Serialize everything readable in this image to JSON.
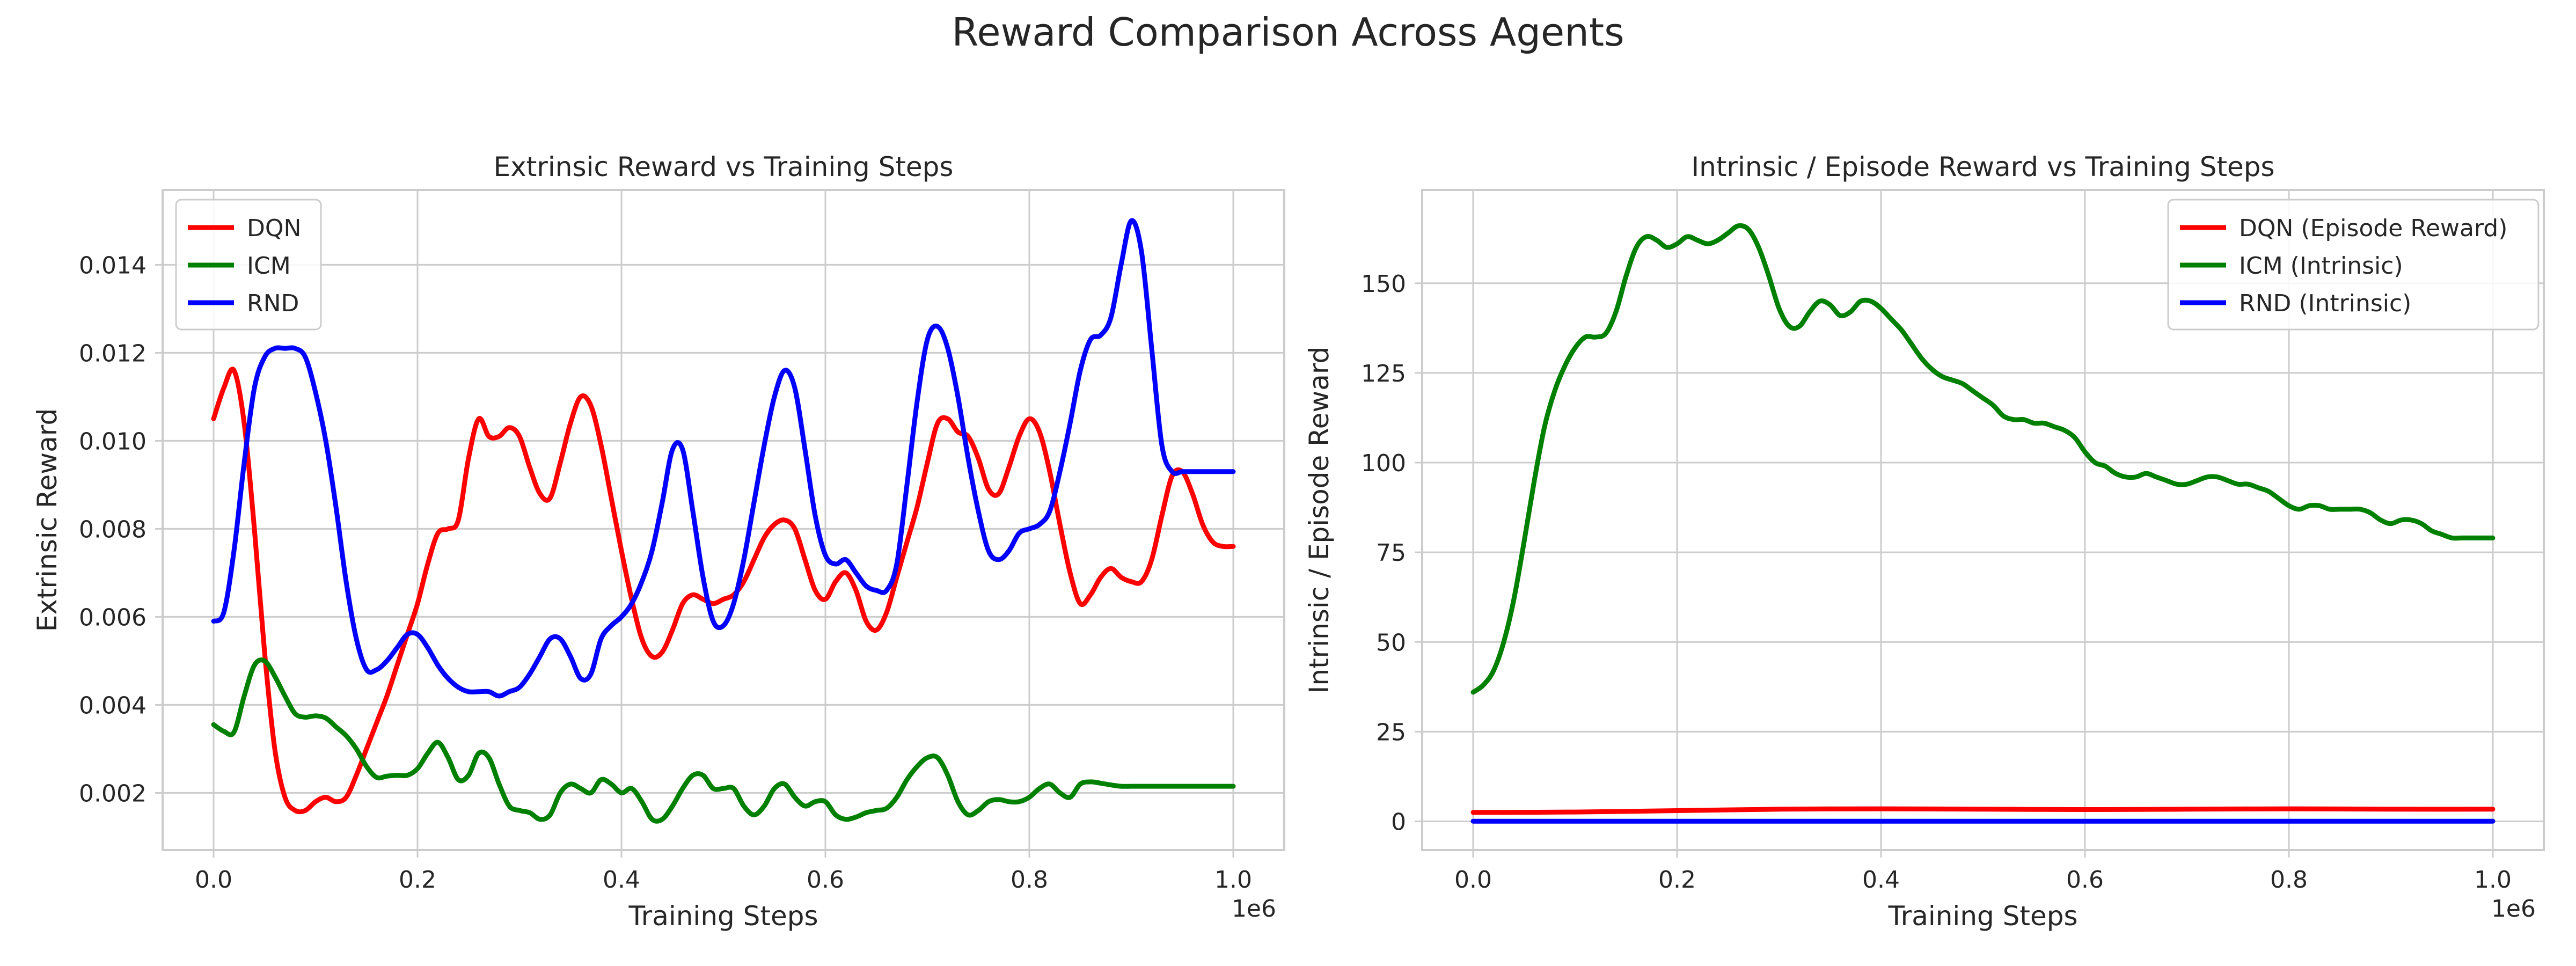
{
  "figure": {
    "suptitle": "Reward Comparison Across Agents"
  },
  "chart_data": [
    {
      "type": "line",
      "title": "Extrinsic Reward vs Training Steps",
      "xlabel": "Training Steps",
      "ylabel": "Extrinsic Reward",
      "x_offset_text": "1e6",
      "xlim": [
        -50000,
        1050000
      ],
      "ylim": [
        0.0007,
        0.0157
      ],
      "xticks": [
        0,
        200000,
        400000,
        600000,
        800000,
        1000000
      ],
      "xtick_labels": [
        "0.0",
        "0.2",
        "0.4",
        "0.6",
        "0.8",
        "1.0"
      ],
      "yticks": [
        0.002,
        0.004,
        0.006,
        0.008,
        0.01,
        0.012,
        0.014
      ],
      "ytick_labels": [
        "0.002",
        "0.004",
        "0.006",
        "0.008",
        "0.010",
        "0.012",
        "0.014"
      ],
      "grid": true,
      "legend_position": "upper-left",
      "series": [
        {
          "name": "DQN",
          "color": "#ff0000",
          "x": [
            0,
            10000,
            20000,
            30000,
            40000,
            50000,
            60000,
            70000,
            80000,
            90000,
            100000,
            110000,
            120000,
            130000,
            140000,
            150000,
            160000,
            170000,
            180000,
            190000,
            200000,
            210000,
            220000,
            230000,
            240000,
            250000,
            260000,
            270000,
            280000,
            290000,
            300000,
            310000,
            320000,
            330000,
            340000,
            350000,
            360000,
            370000,
            380000,
            390000,
            400000,
            410000,
            420000,
            430000,
            440000,
            450000,
            460000,
            470000,
            480000,
            490000,
            500000,
            510000,
            520000,
            530000,
            540000,
            550000,
            560000,
            570000,
            580000,
            590000,
            600000,
            610000,
            620000,
            630000,
            640000,
            650000,
            660000,
            670000,
            680000,
            690000,
            700000,
            710000,
            720000,
            730000,
            740000,
            750000,
            760000,
            770000,
            780000,
            790000,
            800000,
            810000,
            820000,
            830000,
            840000,
            850000,
            860000,
            870000,
            880000,
            890000,
            900000,
            910000,
            920000,
            930000,
            940000,
            950000,
            960000,
            970000,
            980000,
            990000,
            1000000
          ],
          "y": [
            0.0105,
            0.0112,
            0.0116,
            0.0104,
            0.008,
            0.0052,
            0.003,
            0.0019,
            0.0016,
            0.0016,
            0.0018,
            0.0019,
            0.0018,
            0.0019,
            0.0024,
            0.003,
            0.0036,
            0.0042,
            0.0049,
            0.0056,
            0.0063,
            0.0072,
            0.0079,
            0.008,
            0.0082,
            0.0096,
            0.0105,
            0.0101,
            0.0101,
            0.0103,
            0.0101,
            0.0094,
            0.0088,
            0.0087,
            0.0095,
            0.0104,
            0.011,
            0.0108,
            0.0099,
            0.0087,
            0.0075,
            0.0064,
            0.0055,
            0.0051,
            0.0052,
            0.0057,
            0.0063,
            0.0065,
            0.0064,
            0.0063,
            0.0064,
            0.0065,
            0.0068,
            0.0073,
            0.0078,
            0.0081,
            0.0082,
            0.008,
            0.0073,
            0.0066,
            0.0064,
            0.0068,
            0.007,
            0.0066,
            0.0059,
            0.0057,
            0.0061,
            0.0069,
            0.0077,
            0.0085,
            0.0095,
            0.0104,
            0.0105,
            0.0102,
            0.0101,
            0.0096,
            0.0089,
            0.0088,
            0.0094,
            0.0101,
            0.0105,
            0.0102,
            0.0093,
            0.0081,
            0.007,
            0.0063,
            0.0065,
            0.0069,
            0.0071,
            0.0069,
            0.0068,
            0.0068,
            0.0073,
            0.0083,
            0.0092,
            0.0093,
            0.0088,
            0.0081,
            0.0077,
            0.0076,
            0.0076
          ]
        },
        {
          "name": "ICM",
          "color": "#008000",
          "x": [
            0,
            10000,
            20000,
            30000,
            40000,
            50000,
            60000,
            70000,
            80000,
            90000,
            100000,
            110000,
            120000,
            130000,
            140000,
            150000,
            160000,
            170000,
            180000,
            190000,
            200000,
            210000,
            220000,
            230000,
            240000,
            250000,
            260000,
            270000,
            280000,
            290000,
            300000,
            310000,
            320000,
            330000,
            340000,
            350000,
            360000,
            370000,
            380000,
            390000,
            400000,
            410000,
            420000,
            430000,
            440000,
            450000,
            460000,
            470000,
            480000,
            490000,
            500000,
            510000,
            520000,
            530000,
            540000,
            550000,
            560000,
            570000,
            580000,
            590000,
            600000,
            610000,
            620000,
            630000,
            640000,
            650000,
            660000,
            670000,
            680000,
            690000,
            700000,
            710000,
            720000,
            730000,
            740000,
            750000,
            760000,
            770000,
            780000,
            790000,
            800000,
            810000,
            820000,
            830000,
            840000,
            850000,
            860000,
            870000,
            880000,
            890000,
            900000,
            910000,
            920000,
            930000,
            940000,
            950000,
            960000,
            970000,
            980000,
            990000,
            1000000
          ],
          "y": [
            0.00355,
            0.0034,
            0.00338,
            0.0042,
            0.0049,
            0.005,
            0.00465,
            0.0042,
            0.0038,
            0.00372,
            0.00375,
            0.0037,
            0.0035,
            0.0033,
            0.003,
            0.0026,
            0.00235,
            0.00238,
            0.0024,
            0.0024,
            0.00255,
            0.0029,
            0.00315,
            0.0028,
            0.0023,
            0.0024,
            0.0029,
            0.0028,
            0.0022,
            0.0017,
            0.0016,
            0.00155,
            0.0014,
            0.0015,
            0.002,
            0.0022,
            0.0021,
            0.002,
            0.0023,
            0.0022,
            0.002,
            0.0021,
            0.0018,
            0.0014,
            0.0014,
            0.0017,
            0.0021,
            0.0024,
            0.0024,
            0.0021,
            0.0021,
            0.0021,
            0.0017,
            0.0015,
            0.0017,
            0.0021,
            0.0022,
            0.0019,
            0.0017,
            0.0018,
            0.0018,
            0.0015,
            0.0014,
            0.00145,
            0.00155,
            0.0016,
            0.00165,
            0.0019,
            0.0023,
            0.0026,
            0.0028,
            0.0028,
            0.0024,
            0.0018,
            0.0015,
            0.0016,
            0.0018,
            0.00185,
            0.0018,
            0.0018,
            0.0019,
            0.0021,
            0.0022,
            0.002,
            0.0019,
            0.0022,
            0.00225,
            0.00222,
            0.00218,
            0.00215,
            0.00215,
            0.00215,
            0.00215,
            0.00215,
            0.00215,
            0.00215,
            0.00215,
            0.00215,
            0.00215,
            0.00215,
            0.00215
          ]
        },
        {
          "name": "RND",
          "color": "#0000ff",
          "x": [
            0,
            10000,
            20000,
            30000,
            40000,
            50000,
            60000,
            70000,
            80000,
            90000,
            100000,
            110000,
            120000,
            130000,
            140000,
            150000,
            160000,
            170000,
            180000,
            190000,
            200000,
            210000,
            220000,
            230000,
            240000,
            250000,
            260000,
            270000,
            280000,
            290000,
            300000,
            310000,
            320000,
            330000,
            340000,
            350000,
            360000,
            370000,
            380000,
            390000,
            400000,
            410000,
            420000,
            430000,
            440000,
            450000,
            460000,
            470000,
            480000,
            490000,
            500000,
            510000,
            520000,
            530000,
            540000,
            550000,
            560000,
            570000,
            580000,
            590000,
            600000,
            610000,
            620000,
            630000,
            640000,
            650000,
            660000,
            670000,
            680000,
            690000,
            700000,
            710000,
            720000,
            730000,
            740000,
            750000,
            760000,
            770000,
            780000,
            790000,
            800000,
            810000,
            820000,
            830000,
            840000,
            850000,
            860000,
            870000,
            880000,
            890000,
            900000,
            910000,
            920000,
            930000,
            940000,
            950000,
            960000,
            970000,
            980000,
            990000,
            1000000
          ],
          "y": [
            0.0059,
            0.0061,
            0.0075,
            0.0095,
            0.0112,
            0.0119,
            0.0121,
            0.0121,
            0.0121,
            0.0119,
            0.0111,
            0.01,
            0.0085,
            0.0068,
            0.0055,
            0.0048,
            0.0048,
            0.005,
            0.0053,
            0.0056,
            0.0056,
            0.0053,
            0.0049,
            0.0046,
            0.0044,
            0.0043,
            0.0043,
            0.0043,
            0.0042,
            0.0043,
            0.0044,
            0.0047,
            0.0051,
            0.0055,
            0.0055,
            0.0051,
            0.0046,
            0.0047,
            0.0055,
            0.0058,
            0.006,
            0.0063,
            0.0068,
            0.0075,
            0.0086,
            0.0098,
            0.0098,
            0.0084,
            0.0069,
            0.0059,
            0.0058,
            0.0063,
            0.0073,
            0.0086,
            0.0099,
            0.011,
            0.0116,
            0.0112,
            0.0098,
            0.0083,
            0.0074,
            0.0072,
            0.0073,
            0.007,
            0.0067,
            0.0066,
            0.0066,
            0.0072,
            0.009,
            0.0109,
            0.0123,
            0.0126,
            0.0121,
            0.011,
            0.0096,
            0.0084,
            0.0075,
            0.0073,
            0.0075,
            0.0079,
            0.008,
            0.0081,
            0.0084,
            0.0093,
            0.0104,
            0.0116,
            0.0123,
            0.0124,
            0.0128,
            0.014,
            0.015,
            0.0143,
            0.0121,
            0.0099,
            0.0093,
            0.0093,
            0.0093,
            0.0093,
            0.0093,
            0.0093,
            0.0093
          ]
        }
      ]
    },
    {
      "type": "line",
      "title": "Intrinsic / Episode Reward vs Training Steps",
      "xlabel": "Training Steps",
      "ylabel": "Intrinsic / Episode Reward",
      "x_offset_text": "1e6",
      "xlim": [
        -50000,
        1050000
      ],
      "ylim": [
        -8,
        176
      ],
      "xticks": [
        0,
        200000,
        400000,
        600000,
        800000,
        1000000
      ],
      "xtick_labels": [
        "0.0",
        "0.2",
        "0.4",
        "0.6",
        "0.8",
        "1.0"
      ],
      "yticks": [
        0,
        25,
        50,
        75,
        100,
        125,
        150
      ],
      "ytick_labels": [
        "0",
        "25",
        "50",
        "75",
        "100",
        "125",
        "150"
      ],
      "grid": true,
      "legend_position": "upper-right",
      "series": [
        {
          "name": "DQN (Episode Reward)",
          "color": "#ff0000",
          "x": [
            0,
            100000,
            200000,
            300000,
            400000,
            500000,
            600000,
            700000,
            800000,
            900000,
            1000000
          ],
          "y": [
            2.5,
            2.6,
            3.0,
            3.4,
            3.5,
            3.4,
            3.3,
            3.4,
            3.5,
            3.4,
            3.4
          ]
        },
        {
          "name": "ICM (Intrinsic)",
          "color": "#008000",
          "x": [
            0,
            10000,
            20000,
            30000,
            40000,
            50000,
            60000,
            70000,
            80000,
            90000,
            100000,
            110000,
            120000,
            130000,
            140000,
            150000,
            160000,
            170000,
            180000,
            190000,
            200000,
            210000,
            220000,
            230000,
            240000,
            250000,
            260000,
            270000,
            280000,
            290000,
            300000,
            310000,
            320000,
            330000,
            340000,
            350000,
            360000,
            370000,
            380000,
            390000,
            400000,
            410000,
            420000,
            430000,
            440000,
            450000,
            460000,
            470000,
            480000,
            490000,
            500000,
            510000,
            520000,
            530000,
            540000,
            550000,
            560000,
            570000,
            580000,
            590000,
            600000,
            610000,
            620000,
            630000,
            640000,
            650000,
            660000,
            670000,
            680000,
            690000,
            700000,
            710000,
            720000,
            730000,
            740000,
            750000,
            760000,
            770000,
            780000,
            790000,
            800000,
            810000,
            820000,
            830000,
            840000,
            850000,
            860000,
            870000,
            880000,
            890000,
            900000,
            910000,
            920000,
            930000,
            940000,
            950000,
            960000,
            970000,
            980000,
            990000,
            1000000
          ],
          "y": [
            36,
            38,
            42,
            50,
            62,
            78,
            95,
            110,
            120,
            127,
            132,
            135,
            135,
            136,
            142,
            152,
            160,
            163,
            162,
            160,
            161,
            163,
            162,
            161,
            162,
            164,
            166,
            165,
            160,
            152,
            143,
            138,
            138,
            142,
            145,
            144,
            141,
            142,
            145,
            145,
            143,
            140,
            137,
            133,
            129,
            126,
            124,
            123,
            122,
            120,
            118,
            116,
            113,
            112,
            112,
            111,
            111,
            110,
            109,
            107,
            103,
            100,
            99,
            97,
            96,
            96,
            97,
            96,
            95,
            94,
            94,
            95,
            96,
            96,
            95,
            94,
            94,
            93,
            92,
            90,
            88,
            87,
            88,
            88,
            87,
            87,
            87,
            87,
            86,
            84,
            83,
            84,
            84,
            83,
            81,
            80,
            79,
            79,
            79,
            79,
            79
          ]
        },
        {
          "name": "RND (Intrinsic)",
          "color": "#0000ff",
          "x": [
            0,
            100000,
            200000,
            300000,
            400000,
            500000,
            600000,
            700000,
            800000,
            900000,
            1000000
          ],
          "y": [
            0.05,
            0.05,
            0.05,
            0.05,
            0.05,
            0.05,
            0.05,
            0.05,
            0.05,
            0.05,
            0.05
          ]
        }
      ]
    }
  ]
}
